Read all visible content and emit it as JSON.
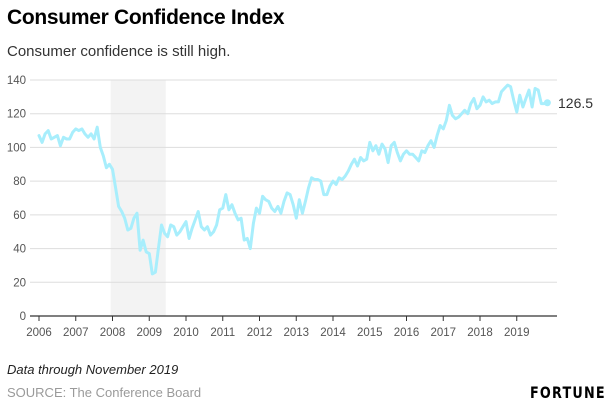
{
  "header": {
    "title": "Consumer Confidence Index",
    "subtitle": "Consumer confidence is still high."
  },
  "footer": {
    "note": "Data through November 2019",
    "source": "SOURCE: The Conference Board",
    "brand": "FORTUNE"
  },
  "colors": {
    "line": "#a8eefc",
    "recession": "#f3f3f3",
    "grid": "#dddddd",
    "axis": "#333333"
  },
  "chart_data": {
    "type": "line",
    "title": "Consumer Confidence Index",
    "subtitle": "Consumer confidence is still high.",
    "xlabel": "",
    "ylabel": "",
    "frequency": "monthly",
    "start": "2006-01",
    "end": "2019-11",
    "xlim": [
      2006,
      2020
    ],
    "ylim": [
      0,
      140
    ],
    "yticks": [
      0,
      20,
      40,
      60,
      80,
      100,
      120,
      140
    ],
    "xticks": [
      "2006",
      "2007",
      "2008",
      "2009",
      "2010",
      "2011",
      "2012",
      "2013",
      "2014",
      "2015",
      "2016",
      "2017",
      "2018",
      "2019"
    ],
    "grid": true,
    "shaded_region": {
      "label": "recession",
      "from": 2007.95,
      "to": 2009.45
    },
    "end_label": "126.5",
    "series": [
      {
        "name": "Consumer Confidence Index",
        "values": [
          107,
          103,
          108,
          110,
          105,
          106,
          107,
          101,
          106,
          105,
          105,
          109,
          111,
          110,
          111,
          108,
          106,
          108,
          105,
          112,
          100,
          95,
          88,
          90,
          87,
          76,
          65,
          62,
          58,
          51,
          52,
          58,
          61,
          39,
          45,
          38,
          37,
          25,
          26,
          40,
          54,
          49,
          47,
          54,
          53,
          48,
          50,
          53,
          56,
          46,
          52,
          57,
          62,
          53,
          51,
          53,
          48,
          50,
          54,
          63,
          64,
          72,
          63,
          66,
          61,
          57,
          58,
          45,
          46,
          40,
          55,
          64,
          61,
          71,
          69,
          68,
          64,
          62,
          65,
          61,
          68,
          73,
          72,
          66,
          58,
          69,
          61,
          68,
          76,
          82,
          81,
          81,
          80,
          72,
          72,
          77,
          80,
          78,
          82,
          81,
          83,
          86,
          90,
          93,
          89,
          94,
          92,
          93,
          103,
          98,
          101,
          96,
          102,
          99,
          91,
          101,
          103,
          97,
          92,
          96,
          98,
          96,
          96,
          94,
          92,
          98,
          97,
          101,
          104,
          100,
          107,
          113,
          111,
          116,
          125,
          119,
          117,
          118,
          120,
          122,
          120,
          126,
          129,
          123,
          125,
          130,
          127,
          128,
          126,
          127,
          127,
          133,
          135,
          137,
          136,
          128,
          121,
          131,
          124,
          129,
          134,
          124,
          135,
          134,
          126,
          126,
          126.5
        ]
      }
    ]
  }
}
